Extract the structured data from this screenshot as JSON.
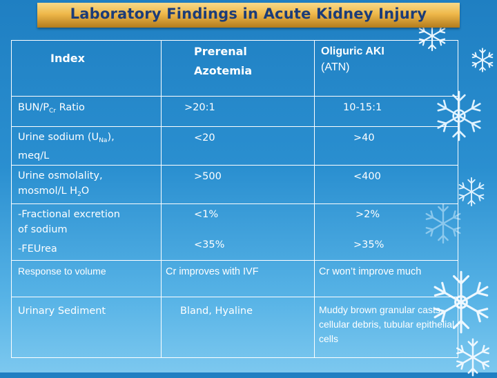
{
  "slide": {
    "title": "Laboratory Findings in Acute Kidney Injury"
  },
  "table": {
    "header": {
      "index": "Index",
      "prerenal_line1": "Prerenal",
      "prerenal_line2": "Azotemia",
      "oliguric": "Oliguric AKI",
      "oliguric_sub": "(ATN)"
    },
    "rows": [
      {
        "label_a": "BUN/P",
        "label_sub": "Cr",
        "label_b": " Ratio",
        "prerenal": ">20:1",
        "oliguric": "10-15:1"
      },
      {
        "label_a": "Urine sodium (U",
        "label_sub": "Na",
        "label_b": "),",
        "label_c": "meq/L",
        "prerenal": "<20",
        "oliguric": ">40"
      },
      {
        "label_a": "Urine osmolality,",
        "label_b": "mosmol/L H",
        "label_sub": "2",
        "label_c": "O",
        "prerenal": ">500",
        "oliguric": "<400"
      },
      {
        "label_a": "-Fractional excretion",
        "label_b": "of sodium",
        "label_c": "-FEUrea",
        "prerenal_a": "<1%",
        "prerenal_b": "<35%",
        "oliguric_a": ">2%",
        "oliguric_b": ">35%"
      },
      {
        "label": "Response to volume",
        "prerenal": "Cr improves with IVF",
        "oliguric": "Cr  won’t improve much"
      },
      {
        "label": "Urinary Sediment",
        "prerenal": "Bland, Hyaline",
        "oliguric": "Muddy brown granular casts, cellular debris, tubular epithelial cells"
      }
    ]
  },
  "colors": {
    "background_top": "#1f7fc2",
    "background_bottom": "#7cc8ef",
    "title_bar": "#efb84a",
    "title_text": "#1c3c78",
    "table_text": "#ffffff",
    "grid_lines": "#ffffff"
  },
  "decorations": [
    "snowflake-icon"
  ]
}
